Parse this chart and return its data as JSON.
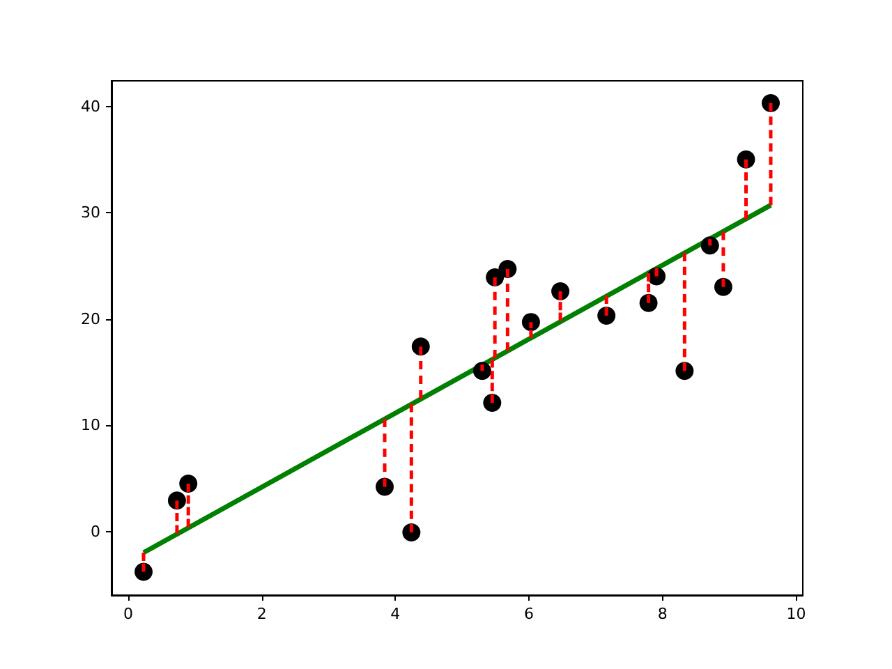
{
  "chart_data": {
    "type": "scatter",
    "xlim": [
      -0.25,
      10.1
    ],
    "ylim": [
      -6,
      42.4
    ],
    "xticks": [
      0,
      2,
      4,
      6,
      8,
      10
    ],
    "yticks": [
      0,
      10,
      20,
      30,
      40
    ],
    "grid": false,
    "marker": "circle",
    "series": [
      {
        "type": "line",
        "marker": "none",
        "color": "#008000",
        "x": [
          0.23,
          9.62
        ],
        "values": [
          -2.0,
          30.7
        ]
      },
      {
        "color": "#000000",
        "x": [
          0.23,
          0.73,
          0.9,
          3.84,
          4.24,
          4.38,
          5.3,
          5.45,
          5.49,
          5.68,
          6.03,
          6.47,
          7.16,
          7.79,
          7.91,
          8.33,
          8.71,
          8.91,
          9.25,
          9.62
        ],
        "values": [
          -3.8,
          2.9,
          4.5,
          4.2,
          -0.1,
          17.4,
          15.1,
          12.1,
          23.9,
          24.7,
          19.7,
          22.6,
          20.3,
          21.5,
          24.0,
          15.1,
          26.9,
          23.0,
          35.0,
          40.3
        ],
        "errors": [
          [
            -3.8,
            -2.0
          ],
          [
            -0.2,
            2.9
          ],
          [
            0.4,
            4.5
          ],
          [
            4.2,
            10.6
          ],
          [
            -0.1,
            12.0
          ],
          [
            12.5,
            17.4
          ],
          [
            15.1,
            15.7
          ],
          [
            12.1,
            16.2
          ],
          [
            16.3,
            23.9
          ],
          [
            17.0,
            24.7
          ],
          [
            18.2,
            19.7
          ],
          [
            19.8,
            22.6
          ],
          [
            20.3,
            22.2
          ],
          [
            21.5,
            24.3
          ],
          [
            24.0,
            24.8
          ],
          [
            15.1,
            26.2
          ],
          [
            26.9,
            27.5
          ],
          [
            23.0,
            28.2
          ],
          [
            29.4,
            35.0
          ],
          [
            30.7,
            40.3
          ]
        ]
      }
    ]
  }
}
